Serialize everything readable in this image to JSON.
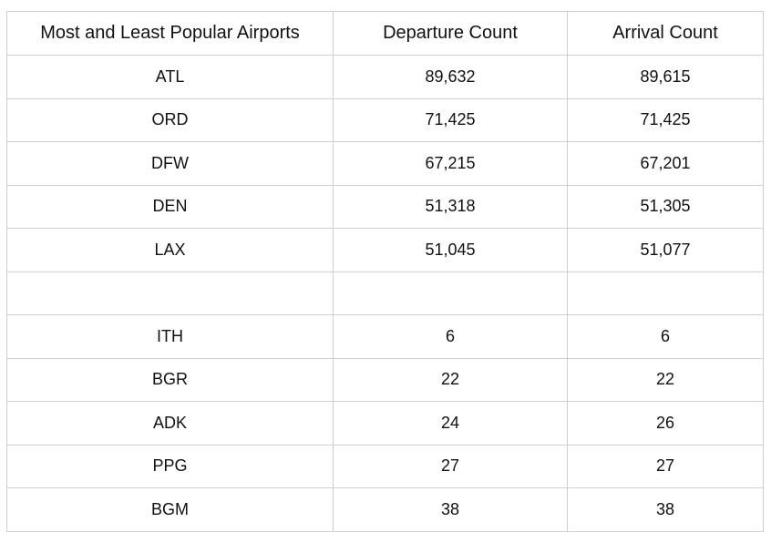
{
  "table": {
    "headers": [
      "Most and Least Popular Airports",
      "Departure Count",
      "Arrival Count"
    ],
    "rows": [
      {
        "airport": "ATL",
        "departures": "89,632",
        "arrivals": "89,615"
      },
      {
        "airport": "ORD",
        "departures": "71,425",
        "arrivals": "71,425"
      },
      {
        "airport": "DFW",
        "departures": "67,215",
        "arrivals": "67,201"
      },
      {
        "airport": "DEN",
        "departures": "51,318",
        "arrivals": "51,305"
      },
      {
        "airport": "LAX",
        "departures": "51,045",
        "arrivals": "51,077"
      },
      {
        "airport": "",
        "departures": "",
        "arrivals": ""
      },
      {
        "airport": "ITH",
        "departures": "6",
        "arrivals": "6"
      },
      {
        "airport": "BGR",
        "departures": "22",
        "arrivals": "22"
      },
      {
        "airport": "ADK",
        "departures": "24",
        "arrivals": "26"
      },
      {
        "airport": "PPG",
        "departures": "27",
        "arrivals": "27"
      },
      {
        "airport": "BGM",
        "departures": "38",
        "arrivals": "38"
      }
    ]
  }
}
